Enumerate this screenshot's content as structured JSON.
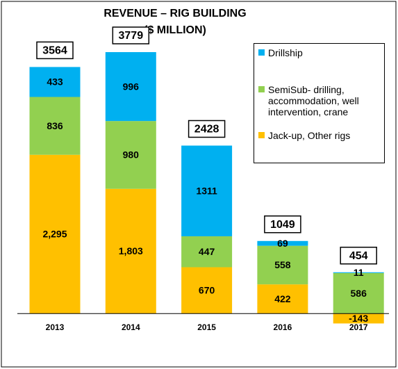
{
  "chart_data": {
    "type": "stacked_bar",
    "title": [
      "REVENUE – RIG BUILDING",
      "($ MILLION)"
    ],
    "categories": [
      "2013",
      "2014",
      "2015",
      "2016",
      "2017"
    ],
    "series": [
      {
        "name": "Jack-up, Other rigs",
        "color": "#ffc000",
        "values": [
          2295,
          1803,
          670,
          422,
          -143
        ],
        "value_labels": [
          "2,295",
          "1,803",
          "670",
          "422",
          "-143"
        ]
      },
      {
        "name": "SemiSub- drilling, accommodation, well intervention, crane",
        "color": "#92d050",
        "values": [
          836,
          980,
          447,
          558,
          586
        ]
      },
      {
        "name": "Drillship",
        "color": "#00b0f0",
        "values": [
          433,
          996,
          1311,
          69,
          11
        ]
      }
    ],
    "totals": [
      3564,
      3779,
      2428,
      1049,
      454
    ],
    "ylim": [
      -500,
      4000
    ],
    "legend": "top-right"
  }
}
